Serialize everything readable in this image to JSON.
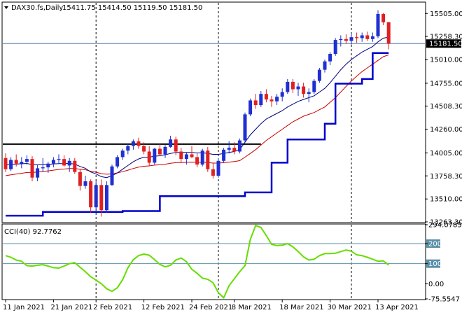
{
  "header": {
    "symbol": "DAX30.fs,Daily",
    "ohlc": "15411.75 15414.50 15119.50 15181.50"
  },
  "current_price_label": "15181.50",
  "cci_panel": {
    "label": "CCI(40) 92.7762",
    "levels": [
      "294.0785",
      "200",
      "100",
      "0.00",
      "-75.5547"
    ]
  },
  "colors": {
    "up_candle": "#1f2fd0",
    "down_candle": "#e02020",
    "support_line": "#0000cc",
    "ma_fast": "#000080",
    "ma_slow": "#cc0000",
    "cci_line": "#66dd00",
    "current_price_line": "#5577aa",
    "cci_level_line": "#5b8fa8",
    "resistance_line": "#000000"
  },
  "chart_data": [
    {
      "type": "candlestick",
      "title": "",
      "ylim": [
        13263.3,
        15620
      ],
      "y_ticks": [
        "15505.00",
        "15258.30",
        "15010.00",
        "14755.00",
        "14508.30",
        "14260.00",
        "14005.00",
        "13758.30",
        "13510.00",
        "13263.30"
      ],
      "x_tick_labels": [
        "11 Jan 2021",
        "21 Jan 2021",
        "2 Feb 2021",
        "12 Feb 2021",
        "24 Feb 2021",
        "8 Mar 2021",
        "18 Mar 2021",
        "30 Mar 2021",
        "13 Apr 2021"
      ],
      "current_price": 15181.5,
      "resistance_level": 14100,
      "candles": [
        [
          13950,
          14000,
          13800,
          13830
        ],
        [
          13830,
          13960,
          13810,
          13930
        ],
        [
          13930,
          13990,
          13860,
          13890
        ],
        [
          13890,
          13960,
          13840,
          13910
        ],
        [
          13910,
          13980,
          13880,
          13940
        ],
        [
          13940,
          13970,
          13700,
          13740
        ],
        [
          13740,
          13880,
          13700,
          13840
        ],
        [
          13840,
          13950,
          13800,
          13850
        ],
        [
          13850,
          13910,
          13790,
          13890
        ],
        [
          13890,
          13960,
          13850,
          13930
        ],
        [
          13930,
          13990,
          13890,
          13940
        ],
        [
          13940,
          13980,
          13860,
          13870
        ],
        [
          13870,
          13950,
          13800,
          13920
        ],
        [
          13920,
          13950,
          13780,
          13800
        ],
        [
          13800,
          13830,
          13600,
          13650
        ],
        [
          13650,
          13760,
          13620,
          13700
        ],
        [
          13700,
          13720,
          13360,
          13420
        ],
        [
          13420,
          13700,
          13400,
          13660
        ],
        [
          13660,
          13720,
          13320,
          13390
        ],
        [
          13390,
          13700,
          13360,
          13660
        ],
        [
          13660,
          13880,
          13650,
          13860
        ],
        [
          13860,
          13980,
          13840,
          13960
        ],
        [
          13960,
          14050,
          13930,
          14030
        ],
        [
          14030,
          14110,
          13990,
          14080
        ],
        [
          14080,
          14150,
          14040,
          14130
        ],
        [
          14130,
          14170,
          14050,
          14080
        ],
        [
          14080,
          14120,
          13990,
          14020
        ],
        [
          14020,
          14080,
          13870,
          13900
        ],
        [
          13900,
          14060,
          13880,
          14050
        ],
        [
          14050,
          14110,
          13970,
          13990
        ],
        [
          13990,
          14090,
          13950,
          14070
        ],
        [
          14070,
          14190,
          14060,
          14150
        ],
        [
          14150,
          14180,
          13980,
          14020
        ],
        [
          14020,
          14060,
          13900,
          13940
        ],
        [
          13940,
          14010,
          13880,
          13990
        ],
        [
          13990,
          14080,
          13950,
          13960
        ],
        [
          13960,
          14000,
          13850,
          13880
        ],
        [
          13880,
          14050,
          13860,
          14030
        ],
        [
          14030,
          14070,
          13800,
          13830
        ],
        [
          13830,
          13900,
          13730,
          13760
        ],
        [
          13760,
          13950,
          13740,
          13920
        ],
        [
          13920,
          14060,
          13900,
          14040
        ],
        [
          14040,
          14130,
          14000,
          14060
        ],
        [
          14060,
          14120,
          13990,
          14020
        ],
        [
          14020,
          14160,
          14000,
          14140
        ],
        [
          14140,
          14440,
          14120,
          14420
        ],
        [
          14420,
          14590,
          14400,
          14570
        ],
        [
          14570,
          14640,
          14480,
          14520
        ],
        [
          14520,
          14670,
          14500,
          14640
        ],
        [
          14640,
          14690,
          14550,
          14580
        ],
        [
          14580,
          14620,
          14500,
          14560
        ],
        [
          14560,
          14640,
          14520,
          14610
        ],
        [
          14610,
          14700,
          14560,
          14660
        ],
        [
          14660,
          14800,
          14640,
          14770
        ],
        [
          14770,
          14800,
          14650,
          14690
        ],
        [
          14690,
          14760,
          14620,
          14720
        ],
        [
          14720,
          14760,
          14600,
          14640
        ],
        [
          14640,
          14700,
          14550,
          14660
        ],
        [
          14660,
          14800,
          14640,
          14780
        ],
        [
          14780,
          14920,
          14760,
          14900
        ],
        [
          14900,
          15010,
          14870,
          14990
        ],
        [
          14990,
          15090,
          14950,
          15070
        ],
        [
          15070,
          15240,
          15050,
          15220
        ],
        [
          15220,
          15270,
          15150,
          15230
        ],
        [
          15230,
          15280,
          15180,
          15210
        ],
        [
          15210,
          15290,
          15170,
          15250
        ],
        [
          15250,
          15300,
          15190,
          15240
        ],
        [
          15240,
          15300,
          15200,
          15270
        ],
        [
          15270,
          15310,
          15210,
          15230
        ],
        [
          15230,
          15300,
          15200,
          15260
        ],
        [
          15260,
          15540,
          15240,
          15500
        ],
        [
          15500,
          15510,
          15380,
          15410
        ],
        [
          15411.75,
          15414.5,
          15119.5,
          15181.5
        ]
      ],
      "ma_fast": [
        13880,
        13882,
        13885,
        13888,
        13892,
        13880,
        13878,
        13880,
        13882,
        13886,
        13890,
        13890,
        13892,
        13885,
        13860,
        13840,
        13800,
        13780,
        13750,
        13740,
        13760,
        13790,
        13830,
        13870,
        13910,
        13940,
        13960,
        13960,
        13970,
        13975,
        13985,
        14000,
        14010,
        14010,
        14010,
        14010,
        14005,
        14008,
        14000,
        13990,
        13990,
        14000,
        14010,
        14020,
        14040,
        14120,
        14200,
        14260,
        14320,
        14370,
        14400,
        14430,
        14460,
        14500,
        14530,
        14560,
        14580,
        14600,
        14620,
        14660,
        14700,
        14760,
        14830,
        14900,
        14960,
        15010,
        15050,
        15090,
        15120,
        15150,
        15200,
        15240,
        15250
      ],
      "ma_slow": [
        13760,
        13770,
        13778,
        13786,
        13795,
        13795,
        13800,
        13806,
        13812,
        13820,
        13828,
        13832,
        13838,
        13838,
        13830,
        13824,
        13808,
        13798,
        13782,
        13776,
        13780,
        13790,
        13804,
        13820,
        13838,
        13852,
        13862,
        13866,
        13874,
        13878,
        13884,
        13894,
        13900,
        13902,
        13904,
        13906,
        13904,
        13906,
        13902,
        13896,
        13896,
        13900,
        13906,
        13912,
        13922,
        13960,
        14000,
        14040,
        14090,
        14140,
        14180,
        14220,
        14260,
        14300,
        14340,
        14370,
        14400,
        14420,
        14440,
        14470,
        14500,
        14550,
        14600,
        14660,
        14720,
        14780,
        14830,
        14880,
        14920,
        14960,
        15000,
        15040,
        15060
      ],
      "support_steps": [
        [
          0,
          13330
        ],
        [
          7,
          13370
        ],
        [
          22,
          13380
        ],
        [
          29,
          13540
        ],
        [
          45,
          13580
        ],
        [
          50,
          13900
        ],
        [
          53,
          14150
        ],
        [
          60,
          14320
        ],
        [
          62,
          14750
        ],
        [
          67,
          14800
        ],
        [
          69,
          15080
        ],
        [
          72,
          15080
        ]
      ],
      "vline_indices": [
        17,
        40,
        65
      ]
    },
    {
      "type": "line",
      "title": "",
      "ylim": [
        -75.5547,
        294.0785
      ],
      "levels": [
        200,
        100
      ],
      "series": [
        {
          "values": [
            140,
            132,
            118,
            112,
            90,
            88,
            92,
            95,
            88,
            80,
            78,
            88,
            100,
            105,
            82,
            60,
            35,
            18,
            0,
            -25,
            -38,
            -20,
            20,
            80,
            120,
            140,
            148,
            142,
            120,
            96,
            84,
            92,
            118,
            128,
            110,
            72,
            52,
            28,
            22,
            5,
            -45,
            -70,
            -10,
            25,
            60,
            90,
            220,
            290,
            280,
            240,
            196,
            190,
            192,
            200,
            184,
            160,
            134,
            118,
            122,
            140,
            150,
            150,
            152,
            160,
            168,
            162,
            144,
            140,
            132,
            122,
            112,
            114,
            92.78
          ]
        }
      ]
    }
  ]
}
